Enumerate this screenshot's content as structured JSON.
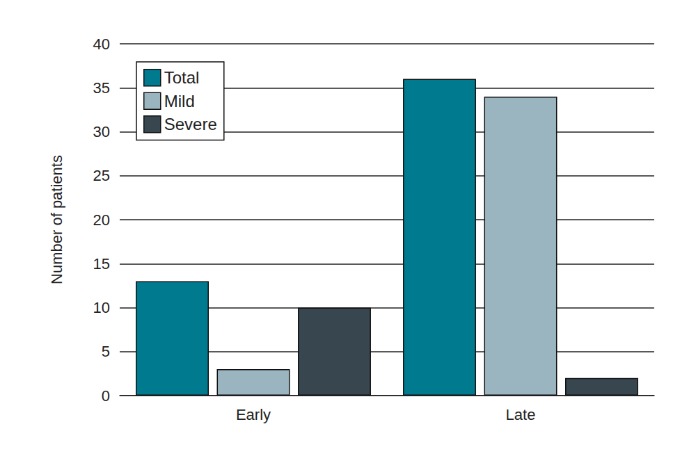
{
  "chart_data": {
    "type": "bar",
    "ylabel": "Number of patients",
    "categories": [
      "Early",
      "Late"
    ],
    "series": [
      {
        "name": "Total",
        "color": "#007a8f",
        "values": [
          13,
          36
        ]
      },
      {
        "name": "Mild",
        "color": "#9ab5bf",
        "values": [
          3,
          34
        ]
      },
      {
        "name": "Severe",
        "color": "#37464f",
        "values": [
          10,
          2
        ]
      }
    ],
    "ylim": [
      0,
      40
    ],
    "yticks": [
      0,
      5,
      10,
      15,
      20,
      25,
      30,
      35,
      40
    ],
    "grid": true,
    "legend": "upper left"
  }
}
